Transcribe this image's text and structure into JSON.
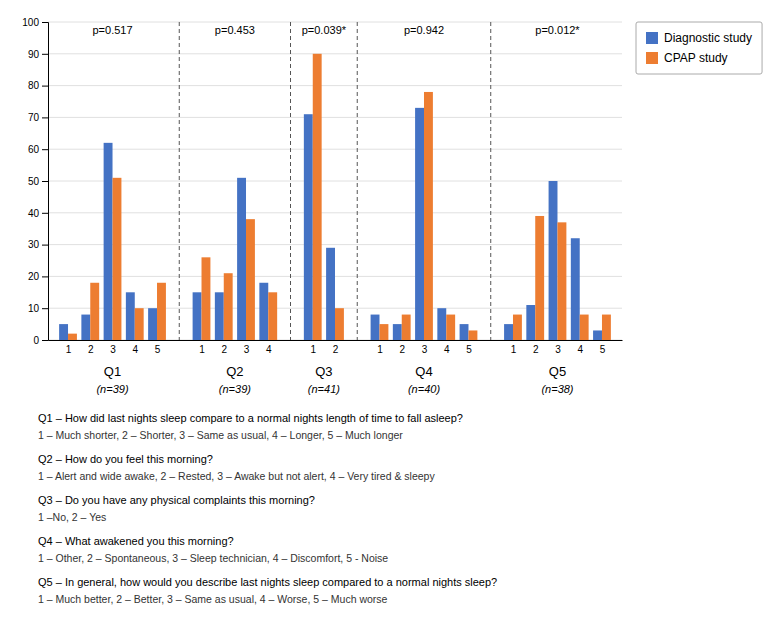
{
  "chart_data": {
    "type": "bar",
    "groups": [
      {
        "name": "Q1",
        "n": "(n=39)",
        "p_value": "p=0.517",
        "categories": [
          "1",
          "2",
          "3",
          "4",
          "5"
        ]
      },
      {
        "name": "Q2",
        "n": "(n=39)",
        "p_value": "p=0.453",
        "categories": [
          "1",
          "2",
          "3",
          "4"
        ]
      },
      {
        "name": "Q3",
        "n": "(n=41)",
        "p_value": "p=0.039*",
        "categories": [
          "1",
          "2"
        ]
      },
      {
        "name": "Q4",
        "n": "(n=40)",
        "p_value": "p=0.942",
        "categories": [
          "1",
          "2",
          "3",
          "4",
          "5"
        ]
      },
      {
        "name": "Q5",
        "n": "(n=38)",
        "p_value": "p=0.012*",
        "categories": [
          "1",
          "2",
          "3",
          "4",
          "5"
        ]
      }
    ],
    "series": [
      {
        "name": "Diagnostic study",
        "color": "#4472C4",
        "values": [
          5,
          8,
          62,
          15,
          10,
          15,
          15,
          51,
          18,
          71,
          29,
          8,
          5,
          73,
          10,
          5,
          5,
          11,
          50,
          32,
          3
        ]
      },
      {
        "name": "CPAP study",
        "color": "#ED7D31",
        "values": [
          2,
          18,
          51,
          10,
          18,
          26,
          21,
          38,
          15,
          90,
          10,
          5,
          8,
          78,
          8,
          3,
          8,
          39,
          37,
          8,
          8
        ]
      }
    ],
    "ylim": [
      0,
      100
    ],
    "yticks": [
      0,
      10,
      20,
      30,
      40,
      50,
      60,
      70,
      80,
      90,
      100
    ],
    "grid": true,
    "legend": "upper right",
    "annotations": [
      {
        "question": "Q1 – How did last nights sleep compare to a normal nights length of time to fall asleep?",
        "answers": "1 – Much shorter, 2 – Shorter, 3 – Same as usual, 4 – Longer, 5 – Much longer"
      },
      {
        "question": "Q2 – How do you feel this morning?",
        "answers": "1 – Alert and wide awake, 2 – Rested, 3 – Awake but not alert, 4 – Very tired & sleepy"
      },
      {
        "question": "Q3 – Do you have any physical complaints this morning?",
        "answers": "1 –No, 2 – Yes"
      },
      {
        "question": "Q4 – What awakened you this morning?",
        "answers": "1 – Other, 2 – Spontaneous, 3 – Sleep technician, 4 – Discomfort, 5 - Noise"
      },
      {
        "question": "Q5 – In general, how would you describe last nights sleep compared to a normal nights sleep?",
        "answers": "1 – Much better, 2 – Better, 3 – Same as usual, 4 – Worse, 5 – Much worse"
      }
    ]
  }
}
